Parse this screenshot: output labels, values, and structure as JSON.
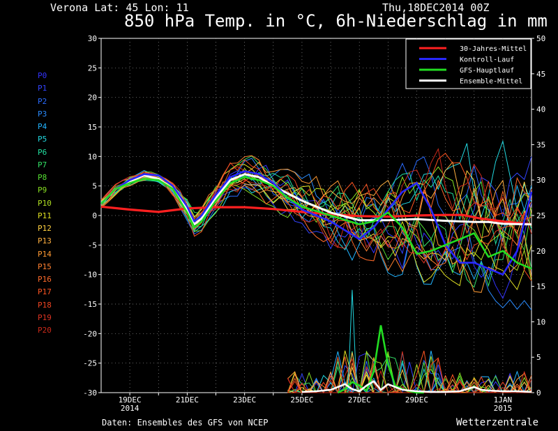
{
  "header": {
    "station": "Verona   Lat: 45 Lon: 11",
    "datetime": "Thu,18DEC2014 00Z",
    "title": "850 hPa Temp. in °C, 6h-Niederschlag in mm"
  },
  "footer": {
    "credit": "Daten: Ensembles des GFS von NCEP",
    "brand": "Wetterzentrale"
  },
  "members": [
    {
      "label": "P0",
      "color": "#3333ff"
    },
    {
      "label": "P1",
      "color": "#3344ff"
    },
    {
      "label": "P2",
      "color": "#2a6cff"
    },
    {
      "label": "P3",
      "color": "#2a8cff"
    },
    {
      "label": "P4",
      "color": "#22b4ff"
    },
    {
      "label": "P5",
      "color": "#22d8e0"
    },
    {
      "label": "P6",
      "color": "#22e0a0"
    },
    {
      "label": "P7",
      "color": "#33e066"
    },
    {
      "label": "P8",
      "color": "#55e033"
    },
    {
      "label": "P9",
      "color": "#88e022"
    },
    {
      "label": "P10",
      "color": "#b0e022"
    },
    {
      "label": "P11",
      "color": "#e0e022"
    },
    {
      "label": "P12",
      "color": "#ffd040"
    },
    {
      "label": "P13",
      "color": "#ffb040"
    },
    {
      "label": "P14",
      "color": "#ff9a33"
    },
    {
      "label": "P15",
      "color": "#ff8030"
    },
    {
      "label": "P16",
      "color": "#ff6a2a"
    },
    {
      "label": "P17",
      "color": "#ff5522"
    },
    {
      "label": "P18",
      "color": "#ee4422"
    },
    {
      "label": "P19",
      "color": "#dd3322"
    },
    {
      "label": "P20",
      "color": "#cc2a1a"
    }
  ],
  "chart_data": {
    "type": "line",
    "title": "850 hPa Temp. in °C, 6h-Niederschlag in mm",
    "x_unit": "days from 18DEC2014 00Z",
    "x_range": [
      0,
      15
    ],
    "x_tick_labels": [
      {
        "x": 1,
        "line1": "19DEC",
        "line2": "2014"
      },
      {
        "x": 3,
        "line1": "21DEC",
        "line2": ""
      },
      {
        "x": 5,
        "line1": "23DEC",
        "line2": ""
      },
      {
        "x": 7,
        "line1": "25DEC",
        "line2": ""
      },
      {
        "x": 9,
        "line1": "27DEC",
        "line2": ""
      },
      {
        "x": 11,
        "line1": "29DEC",
        "line2": ""
      },
      {
        "x": 14,
        "line1": "1JAN",
        "line2": "2015"
      }
    ],
    "y_left": {
      "range": [
        -30,
        30
      ],
      "ticks": [
        30,
        25,
        20,
        15,
        10,
        5,
        0,
        -5,
        -10,
        -15,
        -20,
        -25,
        -30
      ]
    },
    "y_right": {
      "range": [
        0,
        50
      ],
      "ticks": [
        50,
        45,
        40,
        35,
        30,
        25,
        20,
        15,
        10,
        5,
        0
      ]
    },
    "grid": true,
    "legend": {
      "placement": "top-right",
      "entries": [
        {
          "label": "30-Jahres-Mittel",
          "color": "#ff2020"
        },
        {
          "label": "Kontroll-Lauf",
          "color": "#2828ff"
        },
        {
          "label": "GFS-Hauptlauf",
          "color": "#22dd22"
        },
        {
          "label": "Ensemble-Mittel",
          "color": "#ffffff"
        }
      ]
    },
    "temperature_series": [
      {
        "name": "30-Jahres-Mittel",
        "color": "#ff2020",
        "width": 3.2,
        "x": [
          0,
          1,
          2,
          2.5,
          3,
          4,
          5,
          6,
          7,
          8,
          9,
          10,
          11,
          12,
          12.6,
          13.2,
          14,
          15
        ],
        "y": [
          1.5,
          1,
          0.6,
          0.9,
          1.2,
          1.4,
          1.4,
          1.1,
          0.6,
          0.2,
          -0.1,
          -0.2,
          0,
          0.1,
          0.1,
          -0.5,
          -1,
          -1.5
        ]
      },
      {
        "name": "Ensemble-Mittel",
        "color": "#ffffff",
        "width": 3,
        "x": [
          0,
          0.5,
          1,
          1.5,
          2,
          2.5,
          3,
          3.25,
          3.5,
          4,
          4.5,
          5,
          5.5,
          6,
          7,
          8,
          9,
          10,
          11,
          12,
          13,
          13.5,
          14,
          15
        ],
        "y": [
          2,
          4.5,
          5.8,
          6.8,
          6.2,
          4.5,
          1,
          -1.5,
          -0.5,
          3,
          6,
          7,
          6.5,
          5,
          2.5,
          0.5,
          -0.8,
          -0.8,
          -0.6,
          -0.9,
          -1.1,
          -1.1,
          -1.4,
          -1.5
        ]
      },
      {
        "name": "Kontroll-Lauf",
        "color": "#2828ff",
        "width": 2.6,
        "x": [
          0,
          0.5,
          1,
          1.5,
          2,
          2.5,
          3,
          3.25,
          3.5,
          4,
          4.5,
          5,
          5.5,
          6,
          6.5,
          7,
          8,
          9,
          9.5,
          10,
          10.5,
          11,
          11.5,
          12,
          12.5,
          13,
          13.5,
          14,
          14.5,
          15
        ],
        "y": [
          2,
          4.5,
          6,
          7,
          6.8,
          5,
          1.5,
          -1,
          0,
          3.5,
          6.5,
          7.5,
          7,
          5.5,
          3,
          1,
          -1,
          -4,
          -2,
          1,
          4,
          5.5,
          1,
          -5,
          -8,
          -8,
          -9,
          -10,
          -6,
          4
        ]
      },
      {
        "name": "GFS-Hauptlauf",
        "color": "#22dd22",
        "width": 2.6,
        "x": [
          0,
          0.5,
          1,
          1.5,
          2,
          2.5,
          3,
          3.25,
          3.5,
          4,
          4.5,
          5,
          5.5,
          6,
          6.5,
          7,
          8,
          9,
          9.5,
          10,
          10.5,
          11,
          11.5,
          12,
          12.5,
          13,
          13.5,
          14,
          14.5,
          15
        ],
        "y": [
          2,
          4.5,
          5.5,
          6.2,
          6,
          4.5,
          0.5,
          -2,
          -1,
          2.5,
          5.5,
          6.5,
          6,
          5,
          3,
          1.5,
          0,
          -1.5,
          -1,
          0.5,
          -2,
          -6.5,
          -6,
          -5,
          -4,
          -3,
          -7,
          -6,
          -8,
          -9
        ]
      }
    ],
    "precipitation_mm": {
      "GFS-Hauptlauf": {
        "x": [
          8.25,
          8.5,
          8.75,
          9,
          9.25,
          9.5,
          9.75,
          10,
          10.25,
          10.5,
          10.75,
          11,
          11.25
        ],
        "y": [
          0,
          0.5,
          1.5,
          1,
          0.3,
          3,
          9.5,
          4,
          1,
          0.5,
          0.2,
          0,
          0
        ]
      },
      "Ensemble-Mittel": {
        "x": [
          7,
          7.5,
          8,
          8.25,
          8.5,
          8.75,
          9,
          9.25,
          9.5,
          9.75,
          10,
          10.25,
          10.5,
          10.75,
          11,
          11.5,
          12,
          12.5,
          13,
          13.25,
          13.5,
          14,
          14.5,
          15
        ],
        "y": [
          0.1,
          0.2,
          0.4,
          0.8,
          1.2,
          0.5,
          0.2,
          1,
          1.6,
          0.4,
          1.2,
          0.8,
          0.4,
          0.3,
          0.2,
          0.1,
          0.1,
          0.2,
          0.8,
          0.4,
          0.3,
          0.2,
          0.2,
          0.1
        ]
      },
      "spike_peak_mm": 14.5
    }
  }
}
